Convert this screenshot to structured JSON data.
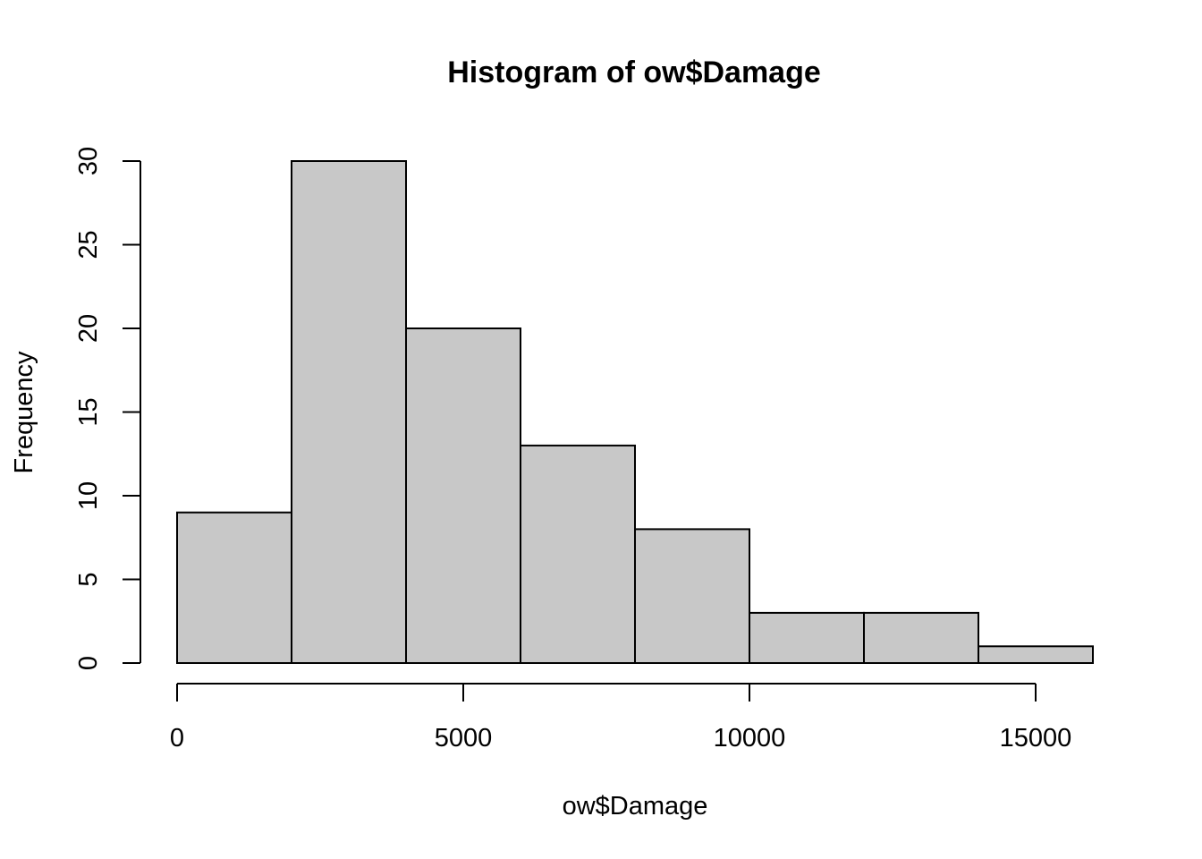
{
  "chart_data": {
    "type": "bar",
    "title": "Histogram of ow$Damage",
    "xlabel": "ow$Damage",
    "ylabel": "Frequency",
    "bins": [
      {
        "from": 0,
        "to": 2000,
        "count": 9
      },
      {
        "from": 2000,
        "to": 4000,
        "count": 30
      },
      {
        "from": 4000,
        "to": 6000,
        "count": 20
      },
      {
        "from": 6000,
        "to": 8000,
        "count": 13
      },
      {
        "from": 8000,
        "to": 10000,
        "count": 8
      },
      {
        "from": 10000,
        "to": 12000,
        "count": 3
      },
      {
        "from": 12000,
        "to": 14000,
        "count": 3
      },
      {
        "from": 14000,
        "to": 16000,
        "count": 1
      }
    ],
    "x_ticks": [
      0,
      5000,
      10000,
      15000
    ],
    "y_ticks": [
      0,
      5,
      10,
      15,
      20,
      25,
      30
    ],
    "xlim": [
      0,
      16000
    ],
    "ylim": [
      0,
      30
    ],
    "bar_color": "#c8c8c8",
    "grid": false,
    "legend": "none"
  }
}
